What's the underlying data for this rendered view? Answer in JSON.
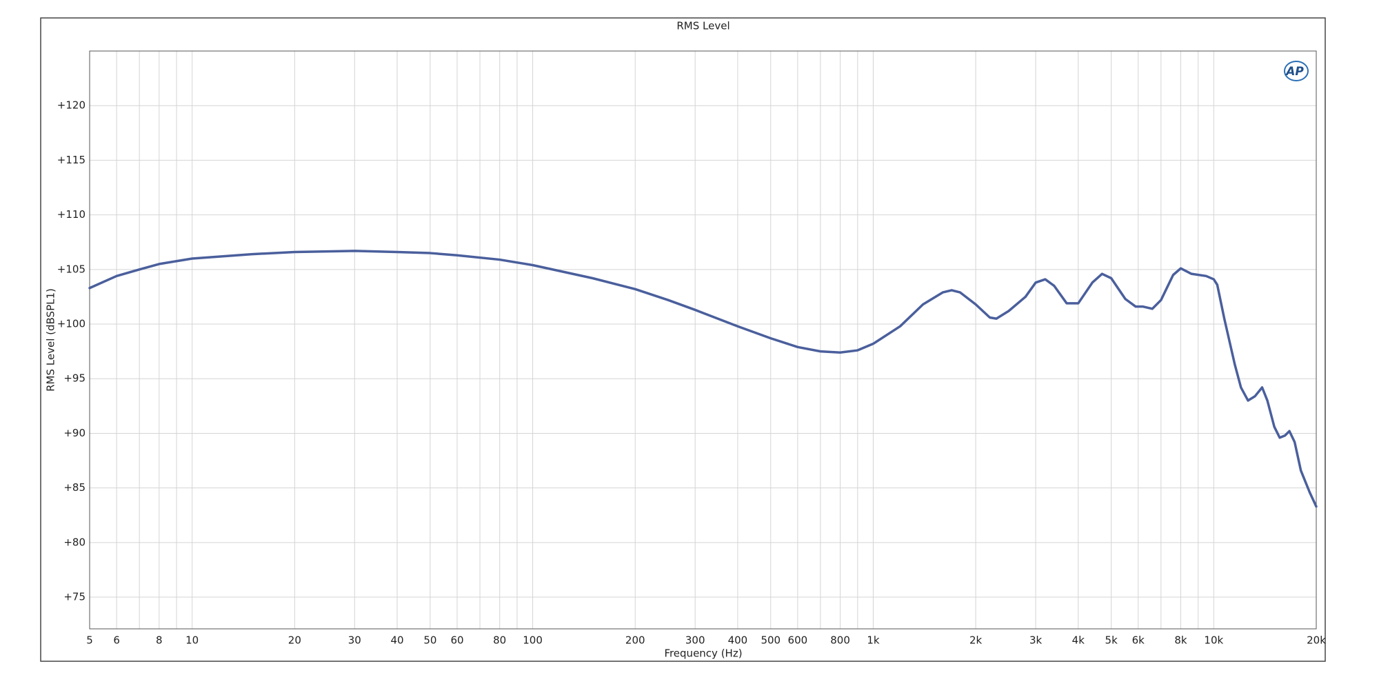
{
  "chart_data": {
    "type": "line",
    "title": "RMS Level",
    "xlabel": "Frequency (Hz)",
    "ylabel": "RMS Level (dBSPL1)",
    "logo": "AP",
    "xscale": "log",
    "grid": true,
    "xlim": [
      5,
      20000
    ],
    "ylim": [
      72.1,
      125
    ],
    "xticks": [
      5,
      6,
      8,
      10,
      20,
      30,
      40,
      50,
      60,
      80,
      100,
      200,
      300,
      400,
      500,
      600,
      800,
      {
        "value": 1000,
        "label": "1k"
      },
      {
        "value": 2000,
        "label": "2k"
      },
      {
        "value": 3000,
        "label": "3k"
      },
      {
        "value": 4000,
        "label": "4k"
      },
      {
        "value": 5000,
        "label": "5k"
      },
      {
        "value": 6000,
        "label": "6k"
      },
      {
        "value": 8000,
        "label": "8k"
      },
      {
        "value": 10000,
        "label": "10k"
      },
      {
        "value": 20000,
        "label": "20k"
      }
    ],
    "xminorticks": [
      7,
      9,
      70,
      90,
      700,
      900,
      7000,
      9000
    ],
    "yticks": [
      {
        "value": 75,
        "label": "+75"
      },
      {
        "value": 80,
        "label": "+80"
      },
      {
        "value": 85,
        "label": "+85"
      },
      {
        "value": 90,
        "label": "+90"
      },
      {
        "value": 95,
        "label": "+95"
      },
      {
        "value": 100,
        "label": "+100"
      },
      {
        "value": 105,
        "label": "+105"
      },
      {
        "value": 110,
        "label": "+110"
      },
      {
        "value": 115,
        "label": "+115"
      },
      {
        "value": 120,
        "label": "+120"
      }
    ],
    "x": [
      5,
      6,
      7,
      8,
      10,
      15,
      20,
      30,
      40,
      50,
      60,
      80,
      100,
      150,
      200,
      250,
      300,
      400,
      500,
      600,
      700,
      800,
      900,
      1000,
      1200,
      1400,
      1600,
      1700,
      1800,
      2000,
      2200,
      2300,
      2500,
      2800,
      3000,
      3200,
      3400,
      3700,
      4000,
      4400,
      4700,
      5000,
      5500,
      5900,
      6200,
      6600,
      7000,
      7600,
      8000,
      8600,
      9500,
      10000,
      10240,
      10740,
      11530,
      12020,
      12610,
      13220,
      13870,
      14370,
      15060,
      15620,
      16190,
      16680,
      17280,
      18020,
      19130,
      20000
    ],
    "series": [
      {
        "name": "RMS Level",
        "color": "#4a5f9c",
        "values": [
          103.3,
          104.4,
          105.0,
          105.5,
          106.0,
          106.4,
          106.6,
          106.7,
          106.6,
          106.5,
          106.3,
          105.9,
          105.4,
          104.2,
          103.2,
          102.2,
          101.3,
          99.8,
          98.7,
          97.9,
          97.5,
          97.4,
          97.6,
          98.2,
          99.8,
          101.8,
          102.9,
          103.1,
          102.9,
          101.8,
          100.6,
          100.5,
          101.2,
          102.5,
          103.8,
          104.1,
          103.5,
          101.9,
          101.9,
          103.8,
          104.6,
          104.2,
          102.3,
          101.6,
          101.6,
          101.4,
          102.2,
          104.5,
          105.1,
          104.6,
          104.4,
          104.1,
          103.6,
          100.5,
          96.3,
          94.2,
          93.0,
          93.4,
          94.2,
          93.0,
          90.6,
          89.6,
          89.8,
          90.2,
          89.2,
          86.6,
          84.6,
          83.3
        ]
      }
    ]
  }
}
